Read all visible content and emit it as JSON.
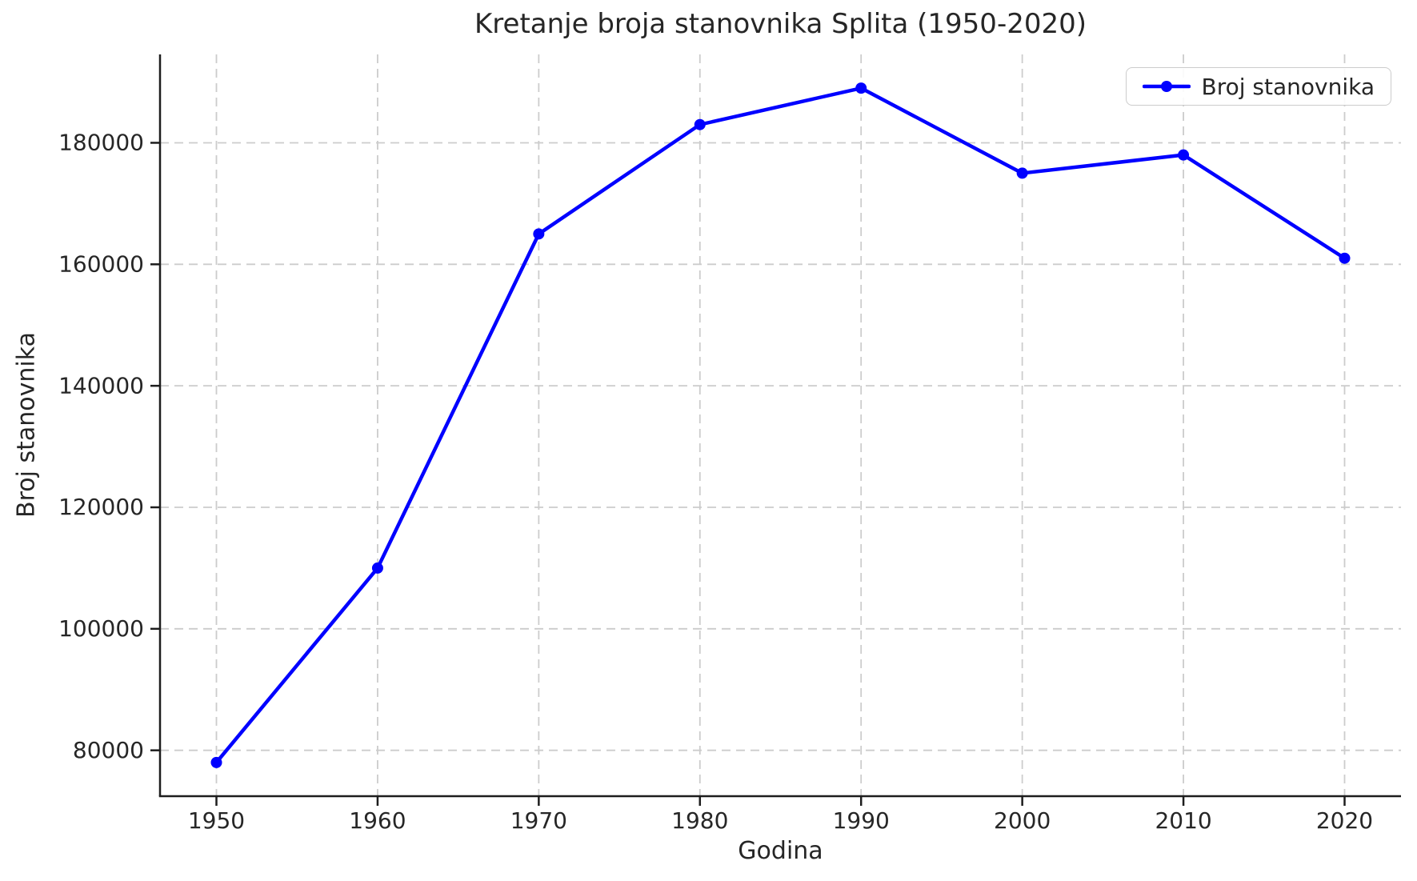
{
  "chart_data": {
    "type": "line",
    "title": "Kretanje broja stanovnika Splita (1950-2020)",
    "xlabel": "Godina",
    "ylabel": "Broj stanovnika",
    "legend": {
      "label": "Broj stanovnika",
      "position": "upper right"
    },
    "x": [
      1950,
      1960,
      1970,
      1980,
      1990,
      2000,
      2010,
      2020
    ],
    "series": [
      {
        "name": "Broj stanovnika",
        "values": [
          78000,
          110000,
          165000,
          183000,
          189000,
          175000,
          178000,
          161000
        ]
      }
    ],
    "xticks": {
      "values": [
        1950,
        1960,
        1970,
        1980,
        1990,
        2000,
        2010,
        2020
      ],
      "labels": [
        "1950",
        "1960",
        "1970",
        "1980",
        "1990",
        "2000",
        "2010",
        "2020"
      ]
    },
    "yticks": {
      "values": [
        80000,
        100000,
        120000,
        140000,
        160000,
        180000
      ],
      "labels": [
        "80000",
        "100000",
        "120000",
        "140000",
        "160000",
        "180000"
      ]
    },
    "xlim": [
      1946.5,
      2023.5
    ],
    "ylim": [
      72450,
      194550
    ],
    "grid": {
      "visible": true,
      "style": "dashed"
    },
    "marker": "circle",
    "colors": {
      "line": "#0000ff",
      "grid": "#cccccc",
      "text": "#262626",
      "spine": "#1d1d1d",
      "legend_border": "#cccccc",
      "background": "#ffffff"
    }
  }
}
